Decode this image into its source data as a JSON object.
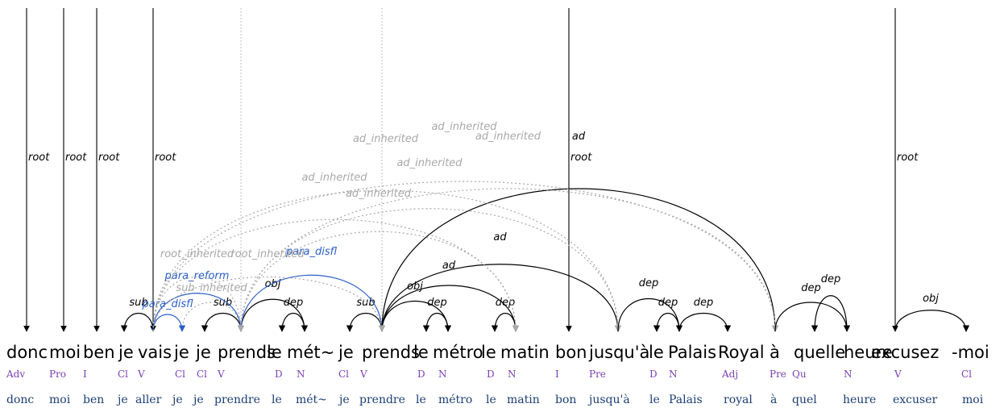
{
  "tokens": [
    {
      "form": "donc",
      "pos": "Adv",
      "lemma": "donc"
    },
    {
      "form": "moi",
      "pos": "Pro",
      "lemma": "moi"
    },
    {
      "form": "ben",
      "pos": "I",
      "lemma": "ben"
    },
    {
      "form": "je",
      "pos": "Cl",
      "lemma": "je"
    },
    {
      "form": "vais",
      "pos": "V",
      "lemma": "aller"
    },
    {
      "form": "je",
      "pos": "Cl",
      "lemma": "je"
    },
    {
      "form": "je",
      "pos": "Cl",
      "lemma": "je"
    },
    {
      "form": "prends",
      "pos": "V",
      "lemma": "prendre"
    },
    {
      "form": "le",
      "pos": "D",
      "lemma": "le"
    },
    {
      "form": "mét~",
      "pos": "N",
      "lemma": "mét~"
    },
    {
      "form": "je",
      "pos": "Cl",
      "lemma": "je"
    },
    {
      "form": "prends",
      "pos": "V",
      "lemma": "prendre"
    },
    {
      "form": "le",
      "pos": "D",
      "lemma": "le"
    },
    {
      "form": "métro",
      "pos": "N",
      "lemma": "métro"
    },
    {
      "form": "le",
      "pos": "D",
      "lemma": "le"
    },
    {
      "form": "matin",
      "pos": "N",
      "lemma": "matin"
    },
    {
      "form": "bon",
      "pos": "I",
      "lemma": "bon"
    },
    {
      "form": "jusqu'à",
      "pos": "Pre",
      "lemma": "jusqu'à"
    },
    {
      "form": "le",
      "pos": "D",
      "lemma": "le"
    },
    {
      "form": "Palais",
      "pos": "N",
      "lemma": "Palais"
    },
    {
      "form": "Royal",
      "pos": "Adj",
      "lemma": "royal"
    },
    {
      "form": "à",
      "pos": "Pre",
      "lemma": "à"
    },
    {
      "form": "quelle",
      "pos": "Qu",
      "lemma": "quel"
    },
    {
      "form": "heure",
      "pos": "N",
      "lemma": "heure"
    },
    {
      "form": "excusez",
      "pos": "V",
      "lemma": "excuser"
    },
    {
      "form": "-moi",
      "pos": "Cl",
      "lemma": "moi"
    }
  ],
  "roots": [
    {
      "to": 0,
      "label": "root"
    },
    {
      "to": 1,
      "label": "root"
    },
    {
      "to": 2,
      "label": "root"
    },
    {
      "to": 4,
      "label": "root"
    },
    {
      "to": 16,
      "label": "root"
    },
    {
      "to": 24,
      "label": "root"
    }
  ],
  "arcs": [
    {
      "from": 4,
      "to": 3,
      "label": "sub",
      "kind": "solid"
    },
    {
      "from": 7,
      "to": 6,
      "label": "sub",
      "kind": "solid"
    },
    {
      "from": 5,
      "to": 7,
      "label": "sub_inherited",
      "kind": "inherited"
    },
    {
      "from": 4,
      "to": 5,
      "label": "para_disfl",
      "kind": "blue"
    },
    {
      "from": 4,
      "to": 7,
      "label": "para_reform",
      "kind": "blue"
    },
    {
      "from": 7,
      "to": 9,
      "label": "obj",
      "kind": "solid"
    },
    {
      "from": 9,
      "to": 8,
      "label": "dep",
      "kind": "solid"
    },
    {
      "from": 11,
      "to": 10,
      "label": "sub",
      "kind": "solid"
    },
    {
      "from": 7,
      "to": 11,
      "label": "para_disfl",
      "kind": "blue"
    },
    {
      "from": 11,
      "to": 13,
      "label": "obj",
      "kind": "solid"
    },
    {
      "from": 13,
      "to": 12,
      "label": "dep",
      "kind": "solid"
    },
    {
      "from": 15,
      "to": 14,
      "label": "dep",
      "kind": "solid"
    },
    {
      "from": 11,
      "to": 15,
      "label": "ad",
      "kind": "solid"
    },
    {
      "from": 11,
      "to": 17,
      "label": "ad",
      "kind": "solid"
    },
    {
      "from": 11,
      "to": 21,
      "label": "ad",
      "kind": "solid"
    },
    {
      "from": 4,
      "to": 7,
      "label": "root_inherited",
      "kind": "inherited"
    },
    {
      "from": 4,
      "to": 11,
      "label": "root_inherited",
      "kind": "inherited"
    },
    {
      "from": 7,
      "to": 15,
      "label": "ad_inherited",
      "kind": "inherited"
    },
    {
      "from": 4,
      "to": 15,
      "label": "ad_inherited",
      "kind": "inherited"
    },
    {
      "from": 7,
      "to": 17,
      "label": "ad_inherited",
      "kind": "inherited"
    },
    {
      "from": 4,
      "to": 17,
      "label": "ad_inherited",
      "kind": "inherited"
    },
    {
      "from": 7,
      "to": 21,
      "label": "ad_inherited",
      "kind": "inherited"
    },
    {
      "from": 4,
      "to": 21,
      "label": "ad_inherited",
      "kind": "inherited"
    },
    {
      "from": 19,
      "to": 18,
      "label": "dep",
      "kind": "solid"
    },
    {
      "from": 17,
      "to": 19,
      "label": "dep",
      "kind": "solid"
    },
    {
      "from": 19,
      "to": 20,
      "label": "dep",
      "kind": "solid"
    },
    {
      "from": 23,
      "to": 22,
      "label": "dep",
      "kind": "solid"
    },
    {
      "from": 21,
      "to": 23,
      "label": "dep",
      "kind": "solid"
    },
    {
      "from": 24,
      "to": 25,
      "label": "obj",
      "kind": "solid"
    }
  ],
  "colors": {
    "solid": "#000000",
    "blue": "#2a5fc8",
    "inherited": "#a8a8a8",
    "pos": "#7b3fb0",
    "lemma": "#1b3f73"
  }
}
